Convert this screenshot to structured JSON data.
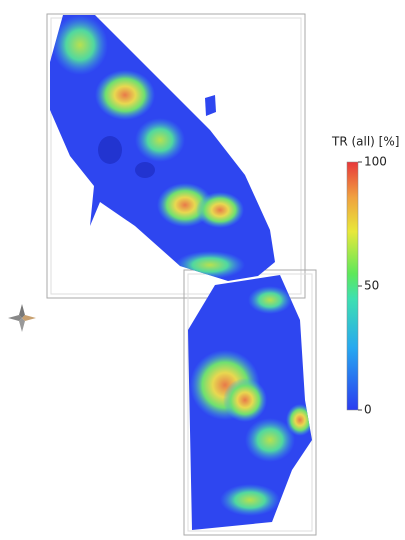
{
  "colorbar": {
    "title": "TR (all) [%]",
    "range": [
      0,
      100
    ],
    "ticks": [
      0,
      50,
      100
    ]
  }
}
